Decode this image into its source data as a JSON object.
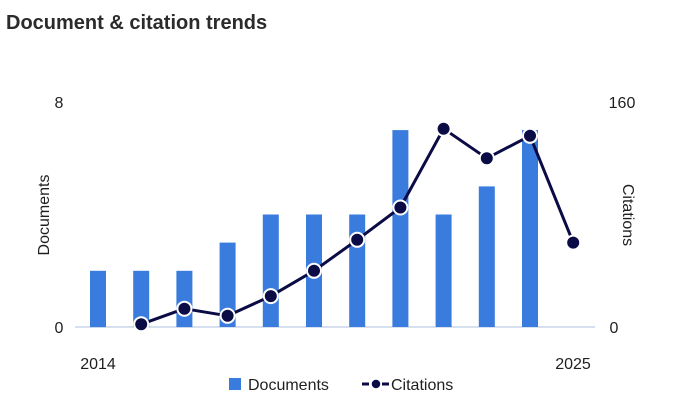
{
  "title": "Document & citation trends",
  "colors": {
    "documents": "#3a7bde",
    "citations": "#0b0b45",
    "axis": "#c9d6e8"
  },
  "chart_data": {
    "type": "bar",
    "title": "Document & citation trends",
    "x": [
      2014,
      2015,
      2016,
      2017,
      2018,
      2019,
      2020,
      2021,
      2022,
      2023,
      2024,
      2025
    ],
    "x_tick_labels": [
      "2014",
      "2025"
    ],
    "series": [
      {
        "name": "Documents",
        "type": "bar",
        "axis": "left",
        "values": [
          2,
          2,
          2,
          3,
          4,
          4,
          4,
          7,
          4,
          5,
          7,
          null
        ]
      },
      {
        "name": "Citations",
        "type": "line",
        "axis": "right",
        "values": [
          null,
          2,
          13,
          8,
          22,
          40,
          62,
          85,
          141,
          120,
          136,
          60
        ]
      }
    ],
    "y_left": {
      "label": "Documents",
      "ticks": [
        "0",
        "8"
      ],
      "range": [
        0,
        8
      ]
    },
    "y_right": {
      "label": "Citations",
      "ticks": [
        "0",
        "160"
      ],
      "range": [
        0,
        160
      ]
    },
    "grid": false,
    "legend_position": "bottom"
  }
}
